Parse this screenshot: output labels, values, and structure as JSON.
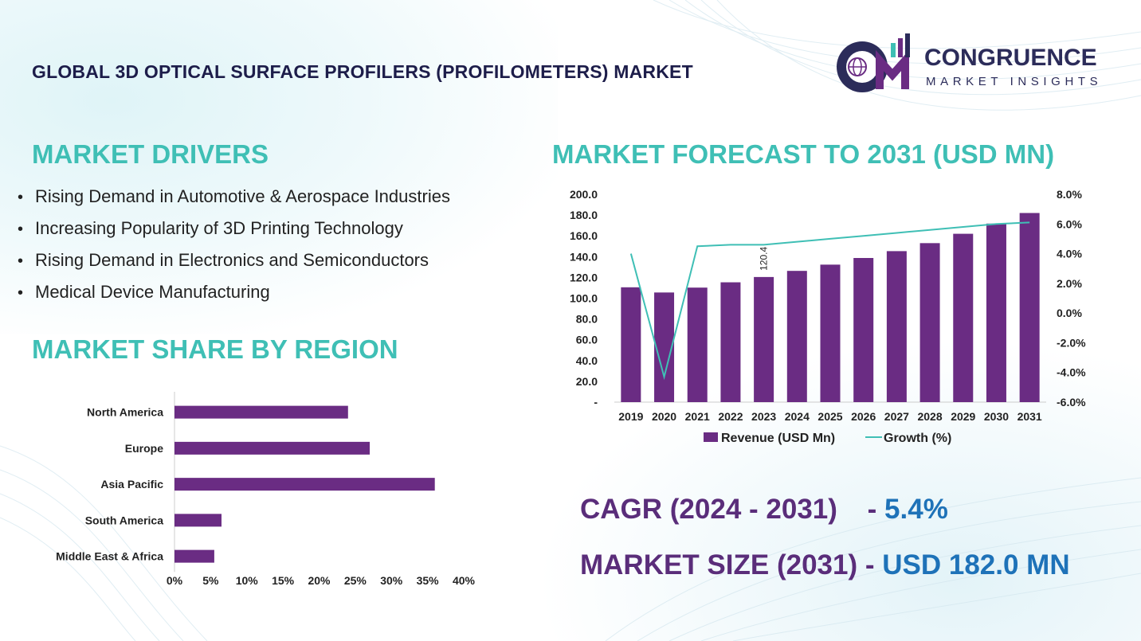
{
  "header": {
    "title": "GLOBAL 3D OPTICAL SURFACE PROFILERS (PROFILOMETERS) MARKET",
    "logo_line1": "CONGRUENCE",
    "logo_line2": "MARKET INSIGHTS"
  },
  "drivers": {
    "title": "MARKET DRIVERS",
    "items": [
      "Rising Demand in Automotive & Aerospace Industries",
      "Increasing Popularity of 3D Printing Technology",
      "Rising Demand in Electronics and Semiconductors",
      "Medical Device Manufacturing"
    ],
    "bullet": "•"
  },
  "region": {
    "title": "MARKET SHARE BY REGION"
  },
  "forecast": {
    "title": "MARKET FORECAST TO 2031 (USD MN)"
  },
  "stats": {
    "cagr_label": "CAGR (2024 - 2031)",
    "cagr_sep": "-",
    "cagr_value": "5.4%",
    "size_label": "MARKET SIZE (2031)",
    "size_sep": "-",
    "size_value": "USD 182.0 MN"
  },
  "colors": {
    "bar": "#6a2c83",
    "line": "#3fbfb5",
    "teal_title": "#3fbfb5",
    "dark_purple": "#5a2d7a",
    "blue": "#1e72b8"
  },
  "chart_data": [
    {
      "type": "bar",
      "orientation": "horizontal",
      "categories": [
        "North America",
        "Europe",
        "Asia Pacific",
        "South America",
        "Middle East & Africa"
      ],
      "values": [
        24,
        27,
        36,
        6.5,
        5.5
      ],
      "xlim": [
        0,
        40
      ],
      "xticks": [
        "0%",
        "5%",
        "10%",
        "15%",
        "20%",
        "25%",
        "30%",
        "35%",
        "40%"
      ],
      "grid": false
    },
    {
      "type": "bar",
      "categories": [
        "2019",
        "2020",
        "2021",
        "2022",
        "2023",
        "2024",
        "2025",
        "2026",
        "2027",
        "2028",
        "2029",
        "2030",
        "2031"
      ],
      "series": [
        {
          "name": "Revenue (USD Mn)",
          "type": "bar",
          "axis": "left",
          "values": [
            110.5,
            105.5,
            110.2,
            115.3,
            120.4,
            126.3,
            132.3,
            138.7,
            145.3,
            153.0,
            162.0,
            171.8,
            182.0
          ]
        },
        {
          "name": "Growth (%)",
          "type": "line",
          "axis": "right",
          "values": [
            4.0,
            -4.3,
            4.5,
            4.6,
            4.6,
            4.8,
            5.0,
            5.2,
            5.4,
            5.6,
            5.8,
            6.0,
            6.1
          ]
        }
      ],
      "ylim_left": [
        0,
        200
      ],
      "ylim_right": [
        -6,
        8
      ],
      "yticks_left": [
        "-",
        "20.0",
        "40.0",
        "60.0",
        "80.0",
        "100.0",
        "120.0",
        "140.0",
        "160.0",
        "180.0",
        "200.0"
      ],
      "yticks_right": [
        "-6.0%",
        "-4.0%",
        "-2.0%",
        "0.0%",
        "2.0%",
        "4.0%",
        "6.0%",
        "8.0%"
      ],
      "annotations": [
        {
          "x": "2023",
          "label": "120.4"
        }
      ],
      "legend": "bottom",
      "grid": false
    }
  ]
}
